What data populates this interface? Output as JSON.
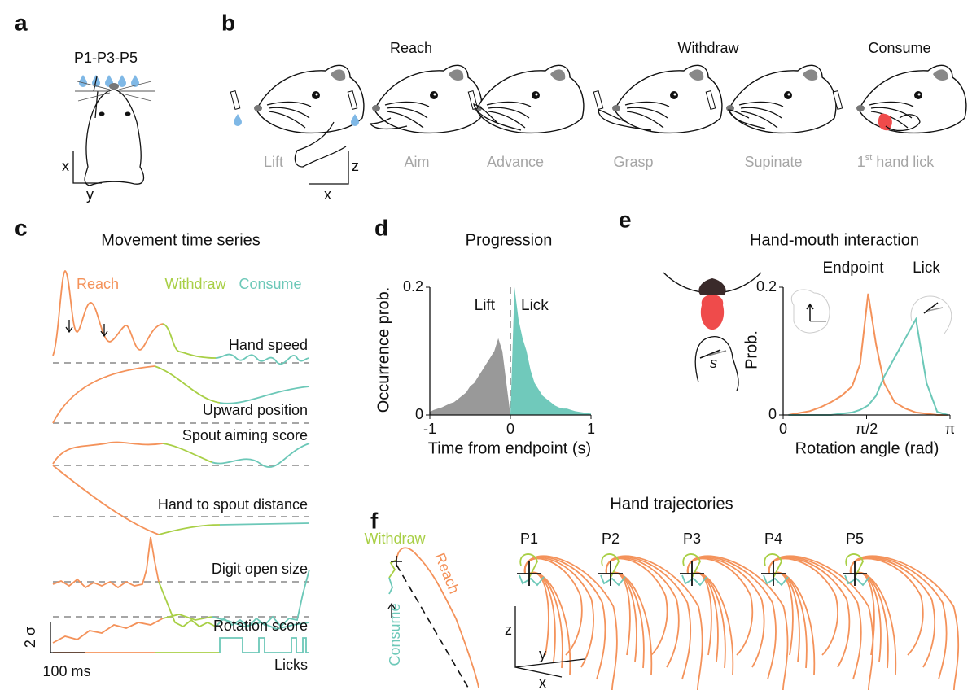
{
  "figure": {
    "panel_labels": [
      "a",
      "b",
      "c",
      "d",
      "e",
      "f"
    ],
    "a": {
      "title": "P1-P3-P5",
      "x": "x",
      "y": "y"
    },
    "b": {
      "phases": [
        "Reach",
        "Withdraw",
        "Consume"
      ],
      "steps": [
        "Lift",
        "Aim",
        "Advance",
        "Grasp",
        "Supinate"
      ],
      "last_step": {
        "number": "1",
        "suffix": "st",
        "text": "hand lick"
      },
      "axis_z": "z",
      "axis_x": "x"
    },
    "c": {
      "title": "Movement time series",
      "phases": [
        "Reach",
        "Withdraw",
        "Consume"
      ],
      "traces": [
        "Hand speed",
        "Upward position",
        "Spout aiming score",
        "Hand to spout distance",
        "Digit open size",
        "Rotation score",
        "Licks"
      ],
      "scale_y": "2 σ",
      "scale_x": "100 ms"
    },
    "f": {
      "title": "Hand trajectories",
      "phases": [
        "Withdraw",
        "Consume",
        "Reach"
      ],
      "positions": [
        "P1",
        "P2",
        "P3",
        "P4",
        "P5"
      ],
      "axes": [
        "z",
        "y",
        "x"
      ]
    }
  },
  "chart_data": [
    {
      "type": "area",
      "title": "Progression",
      "x_label": "Time from endpoint (s)",
      "y_label": "Occurrence prob.",
      "xlim": [
        -1,
        1
      ],
      "ylim": [
        0,
        0.2
      ],
      "xticks": [
        -1,
        0,
        1
      ],
      "yticks": [
        0,
        0.2
      ],
      "series": [
        {
          "name": "Lift",
          "color": "#999999",
          "x": [
            -1,
            -0.95,
            -0.9,
            -0.85,
            -0.8,
            -0.75,
            -0.7,
            -0.65,
            -0.6,
            -0.55,
            -0.5,
            -0.45,
            -0.4,
            -0.35,
            -0.3,
            -0.25,
            -0.2,
            -0.15,
            -0.1,
            -0.05,
            0
          ],
          "values": [
            0.005,
            0.008,
            0.01,
            0.012,
            0.015,
            0.018,
            0.02,
            0.025,
            0.03,
            0.035,
            0.045,
            0.05,
            0.06,
            0.07,
            0.08,
            0.09,
            0.1,
            0.12,
            0.1,
            0.05,
            0
          ]
        },
        {
          "name": "Lick",
          "color": "#70c9bb",
          "x": [
            0,
            0.05,
            0.1,
            0.15,
            0.2,
            0.25,
            0.3,
            0.35,
            0.4,
            0.45,
            0.5,
            0.55,
            0.6,
            0.65,
            0.7,
            0.75,
            0.8,
            0.85,
            0.9,
            0.95,
            1
          ],
          "values": [
            0,
            0.2,
            0.15,
            0.12,
            0.1,
            0.07,
            0.05,
            0.04,
            0.03,
            0.025,
            0.02,
            0.015,
            0.012,
            0.01,
            0.01,
            0.008,
            0.006,
            0.005,
            0.004,
            0.003,
            0.002
          ]
        }
      ]
    },
    {
      "type": "line",
      "title": "Hand-mouth interaction",
      "x_label": "Rotation angle (rad)",
      "y_label": "Prob.",
      "xlim": [
        0,
        3.1416
      ],
      "ylim": [
        0,
        0.2
      ],
      "xticks": [
        0,
        {
          "value": 1.5708,
          "label": "π/2"
        },
        {
          "value": 3.1416,
          "label": "π"
        }
      ],
      "yticks": [
        0,
        0.2
      ],
      "series": [
        {
          "name": "Endpoint",
          "color": "#f4925a",
          "x": [
            0.1,
            0.3,
            0.5,
            0.7,
            0.9,
            1.1,
            1.3,
            1.45,
            1.6,
            1.75,
            1.9,
            2.1,
            2.3,
            2.5,
            2.7,
            2.9,
            3.1
          ],
          "values": [
            0,
            0.003,
            0.006,
            0.012,
            0.02,
            0.03,
            0.045,
            0.08,
            0.19,
            0.11,
            0.05,
            0.02,
            0.01,
            0.004,
            0.002,
            0,
            0
          ]
        },
        {
          "name": "Lick",
          "color": "#6cc8b8",
          "x": [
            0.1,
            0.3,
            0.5,
            0.7,
            0.9,
            1.1,
            1.3,
            1.45,
            1.6,
            1.75,
            1.9,
            2.1,
            2.3,
            2.5,
            2.7,
            2.9,
            3.1
          ],
          "values": [
            0,
            0,
            0,
            0,
            0,
            0.002,
            0.004,
            0.008,
            0.015,
            0.03,
            0.06,
            0.09,
            0.12,
            0.15,
            0.05,
            0.005,
            0
          ]
        }
      ]
    }
  ]
}
